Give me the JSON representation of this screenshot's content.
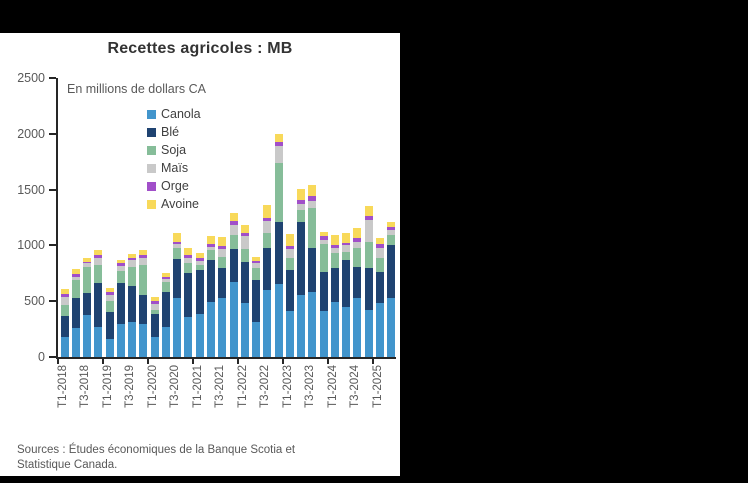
{
  "chart_data": {
    "type": "bar",
    "stacked": true,
    "title": "Recettes agricoles : MB",
    "subtitle": "En millions de dollars CA",
    "ylim": [
      0,
      2500
    ],
    "yticks": [
      0,
      500,
      1000,
      1500,
      2000,
      2500
    ],
    "grid": false,
    "legend_position": "upper-center-inside",
    "categories": [
      "T1-2018",
      "T2-2018",
      "T3-2018",
      "T4-2018",
      "T1-2019",
      "T2-2019",
      "T3-2019",
      "T4-2019",
      "T1-2020",
      "T2-2020",
      "T3-2020",
      "T4-2020",
      "T1-2021",
      "T2-2021",
      "T3-2021",
      "T4-2021",
      "T1-2022",
      "T2-2022",
      "T3-2022",
      "T4-2022",
      "T1-2023",
      "T2-2023",
      "T3-2023",
      "T4-2023",
      "T1-2024",
      "T2-2024",
      "T3-2024",
      "T4-2024",
      "T1-2025",
      "T2-2025"
    ],
    "x_tick_labels_shown": [
      "T1-2018",
      "T3-2018",
      "T1-2019",
      "T3-2019",
      "T1-2020",
      "T3-2020",
      "T1-2021",
      "T3-2021",
      "T1-2022",
      "T3-2022",
      "T1-2023",
      "T3-2023",
      "T1-2024",
      "T3-2024",
      "T1-2025"
    ],
    "series": [
      {
        "name": "Canola",
        "color": "#4295CC",
        "values": [
          175,
          260,
          375,
          270,
          165,
          300,
          315,
          300,
          175,
          270,
          525,
          355,
          385,
          495,
          525,
          675,
          480,
          310,
          600,
          650,
          410,
          555,
          585,
          410,
          495,
          450,
          525,
          420,
          480,
          525
        ]
      },
      {
        "name": "Blé",
        "color": "#1F4371",
        "values": [
          190,
          270,
          195,
          390,
          235,
          360,
          320,
          255,
          210,
          315,
          350,
          400,
          395,
          375,
          270,
          295,
          370,
          380,
          375,
          560,
          370,
          655,
          390,
          350,
          300,
          420,
          285,
          375,
          280,
          475
        ]
      },
      {
        "name": "Soja",
        "color": "#86BD99",
        "values": [
          105,
          160,
          240,
          165,
          105,
          110,
          175,
          270,
          35,
          90,
          100,
          85,
          45,
          85,
          105,
          125,
          120,
          105,
          140,
          530,
          110,
          105,
          360,
          255,
          135,
          75,
          165,
          240,
          125,
          95
        ]
      },
      {
        "name": "Maïs",
        "color": "#C9C9C9",
        "values": [
          70,
          30,
          30,
          60,
          55,
          50,
          55,
          60,
          55,
          20,
          40,
          45,
          35,
          35,
          70,
          90,
          110,
          45,
          105,
          150,
          75,
          60,
          65,
          35,
          50,
          55,
          60,
          195,
          95,
          45
        ]
      },
      {
        "name": "Orge",
        "color": "#A14FC9",
        "values": [
          25,
          25,
          15,
          30,
          20,
          20,
          20,
          30,
          25,
          18,
          20,
          30,
          23,
          25,
          25,
          30,
          30,
          20,
          30,
          35,
          33,
          30,
          40,
          30,
          25,
          20,
          30,
          30,
          30,
          25
        ]
      },
      {
        "name": "Avoine",
        "color": "#F8D95A",
        "values": [
          45,
          40,
          30,
          45,
          35,
          30,
          35,
          40,
          40,
          42,
          80,
          60,
          45,
          65,
          80,
          75,
          70,
          40,
          115,
          75,
          102,
          105,
          105,
          40,
          90,
          90,
          90,
          90,
          60,
          45
        ]
      }
    ],
    "source_line1": "Sources : Études économiques de la Banque Scotia et",
    "source_line2": "Statistique Canada."
  }
}
